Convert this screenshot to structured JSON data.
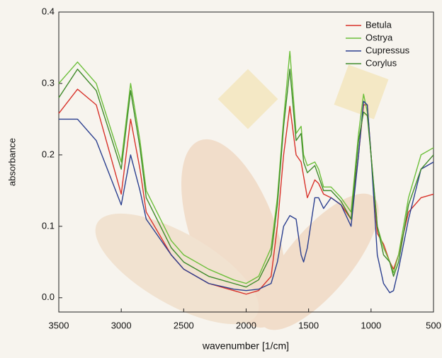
{
  "chart_data": {
    "type": "line",
    "xlabel": "wavenumber [1/cm]",
    "ylabel": "absorbance",
    "xlim": [
      3500,
      500
    ],
    "xticks": [
      3500,
      3000,
      2500,
      2000,
      1500,
      1000,
      500
    ],
    "ylim": [
      -0.02,
      0.4
    ],
    "yticks": [
      {
        "value": 0,
        "label": "0.0"
      },
      0.1,
      0.2,
      0.3,
      0.4
    ],
    "legend": "upper right",
    "x": [
      3500,
      3350,
      3200,
      3000,
      2925,
      2850,
      2800,
      2600,
      2500,
      2300,
      2100,
      2000,
      1900,
      1800,
      1750,
      1700,
      1650,
      1600,
      1560,
      1540,
      1510,
      1450,
      1420,
      1380,
      1320,
      1240,
      1160,
      1100,
      1060,
      1030,
      1000,
      950,
      900,
      850,
      820,
      780,
      700,
      600,
      500
    ],
    "series": [
      {
        "name": "Betula",
        "color": "#d8322a",
        "values": [
          0.258,
          0.292,
          0.27,
          0.145,
          0.25,
          0.18,
          0.12,
          0.06,
          0.04,
          0.02,
          0.01,
          0.005,
          0.01,
          0.03,
          0.1,
          0.2,
          0.268,
          0.2,
          0.19,
          0.17,
          0.14,
          0.165,
          0.16,
          0.145,
          0.14,
          0.13,
          0.11,
          0.2,
          0.27,
          0.27,
          0.2,
          0.09,
          0.075,
          0.05,
          0.04,
          0.06,
          0.12,
          0.14,
          0.145
        ]
      },
      {
        "name": "Ostrya",
        "color": "#6cbf3a",
        "values": [
          0.3,
          0.33,
          0.3,
          0.19,
          0.3,
          0.22,
          0.15,
          0.08,
          0.06,
          0.04,
          0.025,
          0.02,
          0.03,
          0.07,
          0.14,
          0.25,
          0.345,
          0.23,
          0.24,
          0.2,
          0.185,
          0.19,
          0.18,
          0.155,
          0.155,
          0.14,
          0.12,
          0.23,
          0.285,
          0.26,
          0.2,
          0.1,
          0.07,
          0.05,
          0.035,
          0.06,
          0.14,
          0.2,
          0.21
        ]
      },
      {
        "name": "Cupressus",
        "color": "#2b3f8f",
        "values": [
          0.25,
          0.25,
          0.22,
          0.13,
          0.2,
          0.15,
          0.11,
          0.06,
          0.04,
          0.02,
          0.012,
          0.01,
          0.012,
          0.02,
          0.05,
          0.1,
          0.115,
          0.11,
          0.06,
          0.05,
          0.07,
          0.14,
          0.14,
          0.125,
          0.14,
          0.13,
          0.1,
          0.2,
          0.275,
          0.27,
          0.2,
          0.06,
          0.02,
          0.007,
          0.01,
          0.04,
          0.11,
          0.18,
          0.19
        ]
      },
      {
        "name": "Corylus",
        "color": "#3f8a2a",
        "values": [
          0.28,
          0.32,
          0.29,
          0.18,
          0.29,
          0.21,
          0.14,
          0.07,
          0.05,
          0.03,
          0.02,
          0.015,
          0.025,
          0.06,
          0.13,
          0.24,
          0.32,
          0.22,
          0.23,
          0.19,
          0.175,
          0.185,
          0.17,
          0.15,
          0.15,
          0.135,
          0.11,
          0.22,
          0.26,
          0.255,
          0.2,
          0.1,
          0.06,
          0.05,
          0.03,
          0.05,
          0.13,
          0.18,
          0.2
        ]
      }
    ]
  }
}
